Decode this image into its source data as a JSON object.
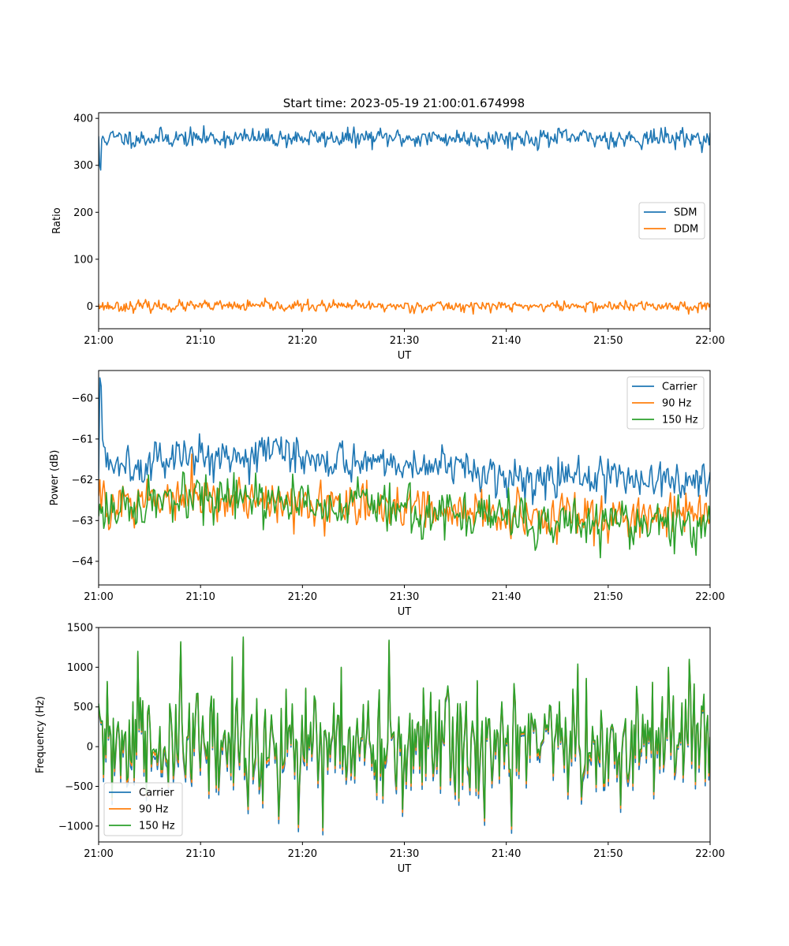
{
  "figure": {
    "title": "Start time: 2023-05-19 21:00:01.674998"
  },
  "chart_data": [
    {
      "type": "line",
      "xlabel": "UT",
      "ylabel": "Ratio",
      "x_range": [
        "21:00",
        "22:00"
      ],
      "xticks": [
        "21:00",
        "21:10",
        "21:20",
        "21:30",
        "21:40",
        "21:50",
        "22:00"
      ],
      "ylim": [
        -48,
        412
      ],
      "yticks": [
        0,
        100,
        200,
        300,
        400
      ],
      "grid": false,
      "legend_position": "center-right",
      "series": [
        {
          "name": "SDM",
          "color": "#1f77b4",
          "mean": 358,
          "noise": 12,
          "samples": 600,
          "seed": 11,
          "start_values": [
            362,
            300,
            290,
            355
          ]
        },
        {
          "name": "DDM",
          "color": "#ff7f0e",
          "mean": 0,
          "noise": 7,
          "samples": 600,
          "seed": 23,
          "start_values": [
            5,
            -5
          ]
        }
      ]
    },
    {
      "type": "line",
      "xlabel": "UT",
      "ylabel": "Power (dB)",
      "x_range": [
        "21:00",
        "22:00"
      ],
      "xticks": [
        "21:00",
        "21:10",
        "21:20",
        "21:30",
        "21:40",
        "21:50",
        "22:00"
      ],
      "ylim": [
        -64.58,
        -59.32
      ],
      "yticks": [
        -64,
        -63,
        -62,
        -61,
        -60
      ],
      "grid": false,
      "legend_position": "top-right",
      "series": [
        {
          "name": "Carrier",
          "color": "#1f77b4",
          "trend": [
            [
              0,
              -61.6
            ],
            [
              15,
              -61.3
            ],
            [
              30,
              -61.6
            ],
            [
              40,
              -61.9
            ],
            [
              50,
              -62.0
            ],
            [
              60,
              -62.0
            ]
          ],
          "noise": 0.3,
          "samples": 480,
          "seed": 5,
          "start_values": [
            -62.0,
            -59.5,
            -59.7,
            -61.0
          ]
        },
        {
          "name": "90 Hz",
          "color": "#ff7f0e",
          "trend": [
            [
              0,
              -62.6
            ],
            [
              15,
              -62.5
            ],
            [
              30,
              -62.7
            ],
            [
              45,
              -62.9
            ],
            [
              60,
              -62.8
            ]
          ],
          "noise": 0.35,
          "samples": 480,
          "seed": 9,
          "start_values": [
            -62.4,
            -62.0
          ]
        },
        {
          "name": "150 Hz",
          "color": "#2ca02c",
          "trend": [
            [
              0,
              -62.7
            ],
            [
              15,
              -62.5
            ],
            [
              30,
              -62.7
            ],
            [
              45,
              -63.1
            ],
            [
              60,
              -63.0
            ]
          ],
          "noise": 0.35,
          "samples": 480,
          "seed": 17,
          "start_values": [
            -62.9,
            -62.6
          ]
        }
      ]
    },
    {
      "type": "line",
      "xlabel": "UT",
      "ylabel": "Frequency (Hz)",
      "x_range": [
        "21:00",
        "22:00"
      ],
      "xticks": [
        "21:00",
        "21:10",
        "21:20",
        "21:30",
        "21:40",
        "21:50",
        "22:00"
      ],
      "ylim": [
        -1200,
        1500
      ],
      "yticks": [
        -1000,
        -500,
        0,
        500,
        1000,
        1500
      ],
      "grid": false,
      "legend_position": "bottom-left",
      "series": [
        {
          "name": "Carrier",
          "color": "#1f77b4",
          "amplitude": 1.0,
          "offset": -70
        },
        {
          "name": "90 Hz",
          "color": "#ff7f0e",
          "amplitude": 1.0,
          "offset": -30
        },
        {
          "name": "150 Hz",
          "color": "#2ca02c",
          "amplitude": 1.0,
          "offset": 0
        }
      ],
      "base_signal": {
        "mean": 30,
        "noise": 430,
        "samples": 500,
        "seed": 31,
        "peaks": [
          [
            14.2,
            1380
          ],
          [
            13.1,
            1130
          ],
          [
            8.0,
            1320
          ],
          [
            28.5,
            1340
          ],
          [
            3.8,
            1200
          ],
          [
            47.0,
            1040
          ],
          [
            58.0,
            1100
          ],
          [
            40.5,
            -1000
          ],
          [
            22.0,
            -1020
          ],
          [
            19.6,
            -980
          ]
        ]
      }
    }
  ]
}
